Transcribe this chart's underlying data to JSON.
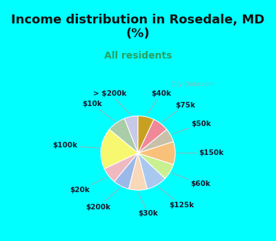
{
  "title": "Income distribution in Rosedale, MD\n(%)",
  "subtitle": "All residents",
  "background_top": "#00FFFF",
  "background_chart": "#e0f2ee",
  "labels": [
    "> $200k",
    "$10k",
    "$100k",
    "$20k",
    "$200k",
    "$30k",
    "$125k",
    "$60k",
    "$150k",
    "$50k",
    "$75k",
    "$40k"
  ],
  "values": [
    6,
    8,
    18,
    7,
    7,
    8,
    9,
    7,
    10,
    6,
    7,
    7
  ],
  "colors": [
    "#c8c8e8",
    "#aacca8",
    "#f8f870",
    "#f0b8c0",
    "#9ab8e8",
    "#f8d8b8",
    "#a8c8f0",
    "#c8f090",
    "#f8c078",
    "#c8c0a8",
    "#f08898",
    "#c8a020"
  ],
  "startangle": 90,
  "title_fontsize": 13,
  "subtitle_fontsize": 10,
  "label_fontsize": 7.5
}
